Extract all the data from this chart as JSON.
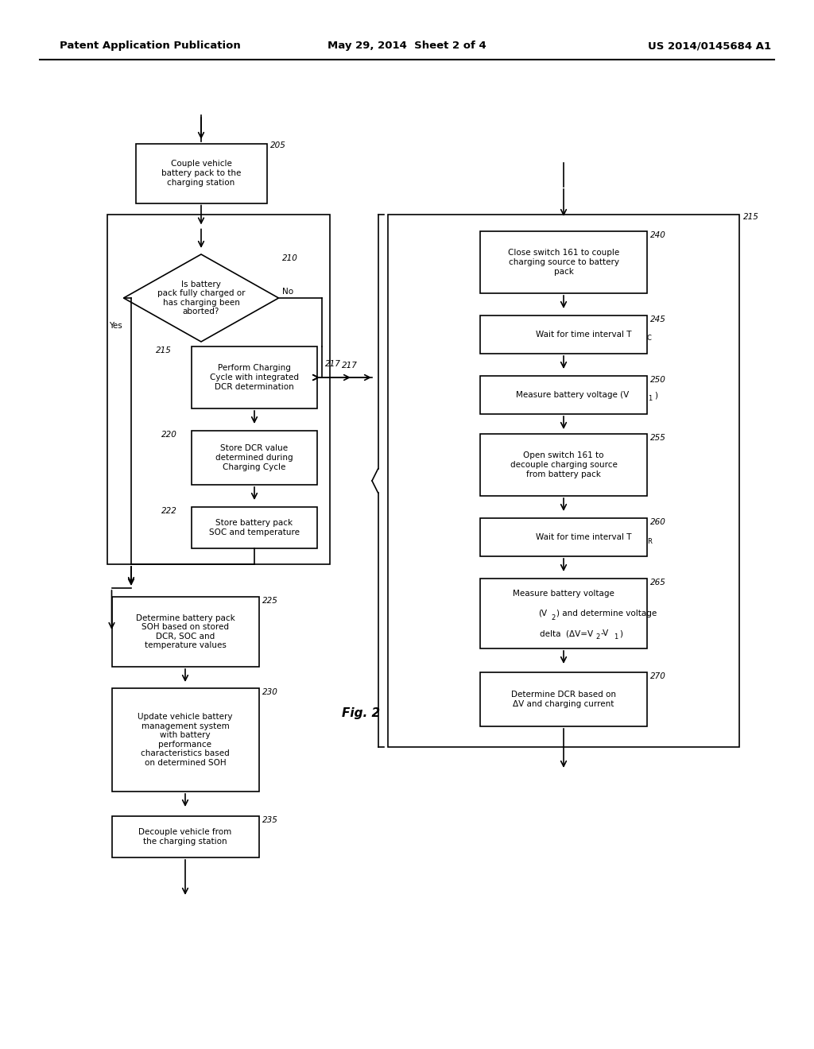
{
  "title_left": "Patent Application Publication",
  "title_mid": "May 29, 2014  Sheet 2 of 4",
  "title_right": "US 2014/0145684 A1",
  "fig_label": "Fig. 2",
  "bg_color": "#ffffff"
}
